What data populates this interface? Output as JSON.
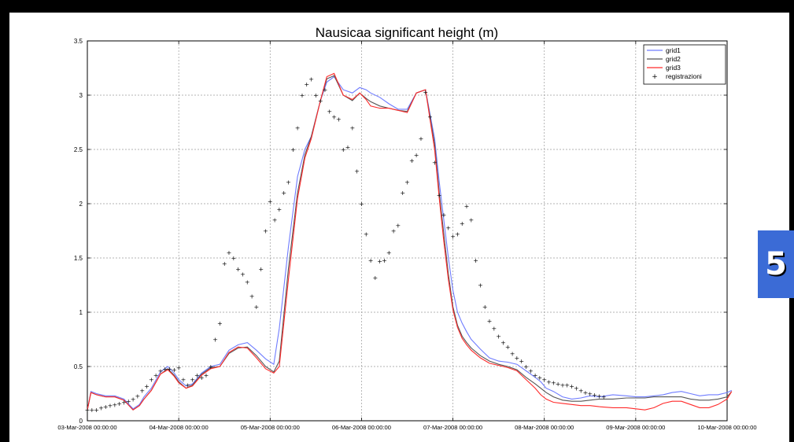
{
  "page_badge": "5",
  "chart_data": {
    "type": "line",
    "title": "Nausicaa significant height (m)",
    "xlabel": "",
    "ylabel": "",
    "grid": true,
    "legend_position": "top-right",
    "x_ticks": [
      0,
      1,
      2,
      3,
      4,
      5,
      6,
      7
    ],
    "x_tick_labels": [
      "03-Mar-2008 00:00:00",
      "04-Mar-2008 00:00:00",
      "05-Mar-2008 00:00:00",
      "06-Mar-2008 00:00:00",
      "07-Mar-2008 00:00:00",
      "08-Mar-2008 00:00:00",
      "09-Mar-2008 00:00:00",
      "10-Mar-2008 00:00:00"
    ],
    "xlim": [
      0,
      7
    ],
    "ylim": [
      0,
      3.5
    ],
    "y_ticks": [
      0,
      0.5,
      1,
      1.5,
      2,
      2.5,
      3,
      3.5
    ],
    "y_tick_labels": [
      "0",
      "0.5",
      "1",
      "1.5",
      "2",
      "2.5",
      "3",
      "3.5"
    ],
    "colors": {
      "grid1": "#6f7cff",
      "grid2": "#555555",
      "grid3": "#ff2a2a",
      "registrazioni": "#000000"
    },
    "series": [
      {
        "name": "grid1",
        "style": "line",
        "x": [
          0,
          0.04,
          0.1,
          0.2,
          0.3,
          0.4,
          0.5,
          0.57,
          0.62,
          0.7,
          0.8,
          0.88,
          0.95,
          1.0,
          1.08,
          1.15,
          1.25,
          1.35,
          1.45,
          1.55,
          1.65,
          1.75,
          1.85,
          1.95,
          2.04,
          2.1,
          2.2,
          2.3,
          2.38,
          2.45,
          2.55,
          2.62,
          2.7,
          2.8,
          2.9,
          2.98,
          3.05,
          3.1,
          3.2,
          3.3,
          3.4,
          3.5,
          3.6,
          3.7,
          3.8,
          3.85,
          3.9,
          3.95,
          4.0,
          4.05,
          4.1,
          4.15,
          4.2,
          4.3,
          4.4,
          4.5,
          4.6,
          4.7,
          4.8,
          4.9,
          4.96,
          5.02,
          5.1,
          5.2,
          5.3,
          5.4,
          5.5,
          5.6,
          5.75,
          5.9,
          6.0,
          6.1,
          6.2,
          6.3,
          6.4,
          6.5,
          6.6,
          6.7,
          6.8,
          6.9,
          7.0,
          7.05
        ],
        "y": [
          0.1,
          0.27,
          0.25,
          0.23,
          0.23,
          0.2,
          0.11,
          0.15,
          0.22,
          0.3,
          0.45,
          0.5,
          0.44,
          0.38,
          0.32,
          0.34,
          0.44,
          0.5,
          0.52,
          0.65,
          0.7,
          0.72,
          0.65,
          0.57,
          0.52,
          0.85,
          1.6,
          2.25,
          2.5,
          2.62,
          2.95,
          3.12,
          3.17,
          3.05,
          3.02,
          3.07,
          3.05,
          3.02,
          2.98,
          2.92,
          2.87,
          2.87,
          3.02,
          3.05,
          2.6,
          2.2,
          1.85,
          1.5,
          1.2,
          1.0,
          0.9,
          0.82,
          0.75,
          0.66,
          0.58,
          0.55,
          0.54,
          0.52,
          0.46,
          0.4,
          0.36,
          0.3,
          0.27,
          0.22,
          0.2,
          0.21,
          0.23,
          0.22,
          0.24,
          0.23,
          0.22,
          0.22,
          0.23,
          0.24,
          0.26,
          0.27,
          0.25,
          0.23,
          0.24,
          0.24,
          0.26,
          0.28
        ]
      },
      {
        "name": "grid2",
        "style": "line",
        "x": [
          0,
          0.04,
          0.1,
          0.2,
          0.3,
          0.4,
          0.5,
          0.57,
          0.62,
          0.7,
          0.8,
          0.88,
          0.95,
          1.0,
          1.08,
          1.15,
          1.25,
          1.35,
          1.45,
          1.55,
          1.65,
          1.75,
          1.85,
          1.95,
          2.04,
          2.1,
          2.2,
          2.3,
          2.38,
          2.45,
          2.55,
          2.62,
          2.7,
          2.8,
          2.9,
          2.98,
          3.05,
          3.1,
          3.2,
          3.3,
          3.4,
          3.5,
          3.6,
          3.7,
          3.8,
          3.85,
          3.9,
          3.95,
          4.0,
          4.05,
          4.1,
          4.15,
          4.2,
          4.3,
          4.4,
          4.5,
          4.6,
          4.7,
          4.8,
          4.9,
          4.96,
          5.02,
          5.1,
          5.2,
          5.3,
          5.4,
          5.5,
          5.6,
          5.75,
          5.9,
          6.0,
          6.1,
          6.2,
          6.3,
          6.4,
          6.5,
          6.6,
          6.7,
          6.8,
          6.9,
          7.0,
          7.05
        ],
        "y": [
          0.1,
          0.26,
          0.24,
          0.22,
          0.22,
          0.19,
          0.1,
          0.14,
          0.2,
          0.28,
          0.43,
          0.48,
          0.42,
          0.36,
          0.3,
          0.33,
          0.43,
          0.49,
          0.5,
          0.62,
          0.67,
          0.68,
          0.6,
          0.5,
          0.45,
          0.55,
          1.4,
          2.1,
          2.45,
          2.62,
          2.95,
          3.15,
          3.18,
          3.0,
          2.95,
          3.02,
          2.97,
          2.94,
          2.9,
          2.88,
          2.86,
          2.85,
          3.02,
          3.05,
          2.55,
          2.1,
          1.72,
          1.35,
          1.05,
          0.88,
          0.78,
          0.72,
          0.67,
          0.6,
          0.55,
          0.52,
          0.5,
          0.47,
          0.4,
          0.34,
          0.3,
          0.26,
          0.22,
          0.19,
          0.18,
          0.18,
          0.19,
          0.2,
          0.2,
          0.21,
          0.21,
          0.21,
          0.22,
          0.22,
          0.22,
          0.22,
          0.2,
          0.19,
          0.19,
          0.2,
          0.22,
          0.27
        ]
      },
      {
        "name": "grid3",
        "style": "line",
        "x": [
          0,
          0.04,
          0.1,
          0.2,
          0.3,
          0.4,
          0.5,
          0.57,
          0.62,
          0.7,
          0.8,
          0.88,
          0.95,
          1.0,
          1.08,
          1.15,
          1.25,
          1.35,
          1.45,
          1.55,
          1.65,
          1.75,
          1.85,
          1.95,
          2.04,
          2.1,
          2.2,
          2.3,
          2.38,
          2.45,
          2.55,
          2.62,
          2.7,
          2.8,
          2.9,
          2.98,
          3.05,
          3.1,
          3.2,
          3.3,
          3.4,
          3.5,
          3.6,
          3.7,
          3.8,
          3.85,
          3.9,
          3.95,
          4.0,
          4.05,
          4.1,
          4.15,
          4.2,
          4.3,
          4.4,
          4.5,
          4.6,
          4.7,
          4.8,
          4.9,
          4.96,
          5.02,
          5.1,
          5.2,
          5.3,
          5.4,
          5.5,
          5.6,
          5.75,
          5.9,
          6.0,
          6.1,
          6.2,
          6.3,
          6.4,
          6.5,
          6.6,
          6.7,
          6.8,
          6.9,
          7.0,
          7.05
        ],
        "y": [
          0.1,
          0.26,
          0.24,
          0.22,
          0.22,
          0.19,
          0.1,
          0.14,
          0.2,
          0.28,
          0.43,
          0.47,
          0.41,
          0.35,
          0.3,
          0.32,
          0.42,
          0.48,
          0.5,
          0.63,
          0.68,
          0.67,
          0.58,
          0.48,
          0.44,
          0.5,
          1.3,
          2.05,
          2.42,
          2.6,
          2.95,
          3.17,
          3.2,
          3.0,
          2.96,
          3.02,
          2.96,
          2.9,
          2.88,
          2.88,
          2.86,
          2.84,
          3.02,
          3.05,
          2.5,
          2.05,
          1.65,
          1.3,
          1.02,
          0.86,
          0.76,
          0.7,
          0.65,
          0.58,
          0.53,
          0.51,
          0.49,
          0.46,
          0.38,
          0.3,
          0.24,
          0.2,
          0.17,
          0.16,
          0.15,
          0.14,
          0.14,
          0.13,
          0.12,
          0.12,
          0.11,
          0.1,
          0.12,
          0.16,
          0.18,
          0.18,
          0.15,
          0.12,
          0.12,
          0.15,
          0.2,
          0.27
        ]
      },
      {
        "name": "registrazioni",
        "style": "marker",
        "x": [
          0,
          0.05,
          0.1,
          0.15,
          0.2,
          0.25,
          0.3,
          0.35,
          0.4,
          0.45,
          0.5,
          0.55,
          0.6,
          0.65,
          0.7,
          0.75,
          0.8,
          0.85,
          0.9,
          0.95,
          1.0,
          1.05,
          1.1,
          1.15,
          1.2,
          1.25,
          1.3,
          1.35,
          1.4,
          1.45,
          1.5,
          1.55,
          1.6,
          1.65,
          1.7,
          1.75,
          1.8,
          1.85,
          1.9,
          1.95,
          2.0,
          2.05,
          2.1,
          2.15,
          2.2,
          2.25,
          2.3,
          2.35,
          2.4,
          2.45,
          2.5,
          2.55,
          2.6,
          2.65,
          2.7,
          2.75,
          2.8,
          2.85,
          2.9,
          2.95,
          3.0,
          3.05,
          3.1,
          3.15,
          3.2,
          3.25,
          3.3,
          3.35,
          3.4,
          3.45,
          3.5,
          3.55,
          3.6,
          3.65,
          3.7,
          3.75,
          3.8,
          3.85,
          3.9,
          3.95,
          4.0,
          4.05,
          4.1,
          4.15,
          4.2,
          4.25,
          4.3,
          4.35,
          4.4,
          4.45,
          4.5,
          4.55,
          4.6,
          4.65,
          4.7,
          4.75,
          4.8,
          4.85,
          4.9,
          4.95,
          5.0,
          5.05,
          5.1,
          5.15,
          5.2,
          5.25,
          5.3,
          5.35,
          5.4,
          5.45,
          5.5,
          5.55,
          5.6,
          5.65
        ],
        "y": [
          0.1,
          0.1,
          0.1,
          0.12,
          0.13,
          0.14,
          0.15,
          0.16,
          0.17,
          0.18,
          0.2,
          0.23,
          0.28,
          0.32,
          0.38,
          0.42,
          0.46,
          0.48,
          0.48,
          0.47,
          0.49,
          0.38,
          0.33,
          0.38,
          0.42,
          0.4,
          0.42,
          0.5,
          0.75,
          0.9,
          1.45,
          1.55,
          1.5,
          1.4,
          1.35,
          1.28,
          1.15,
          1.05,
          1.4,
          1.75,
          2.02,
          1.85,
          1.95,
          2.1,
          2.2,
          2.5,
          2.7,
          3.0,
          3.1,
          3.15,
          3.0,
          2.95,
          3.05,
          2.85,
          2.8,
          2.78,
          2.5,
          2.52,
          2.7,
          2.3,
          2.0,
          1.72,
          1.48,
          1.32,
          1.47,
          1.48,
          1.55,
          1.75,
          1.8,
          2.1,
          2.2,
          2.4,
          2.45,
          2.6,
          3.03,
          2.8,
          2.38,
          2.08,
          1.9,
          1.78,
          1.7,
          1.72,
          1.82,
          1.98,
          1.85,
          1.48,
          1.25,
          1.05,
          0.92,
          0.85,
          0.78,
          0.72,
          0.68,
          0.62,
          0.58,
          0.55,
          0.5,
          0.46,
          0.42,
          0.4,
          0.38,
          0.36,
          0.35,
          0.34,
          0.33,
          0.33,
          0.32,
          0.3,
          0.28,
          0.26,
          0.25,
          0.24,
          0.23,
          0.22
        ]
      }
    ]
  }
}
